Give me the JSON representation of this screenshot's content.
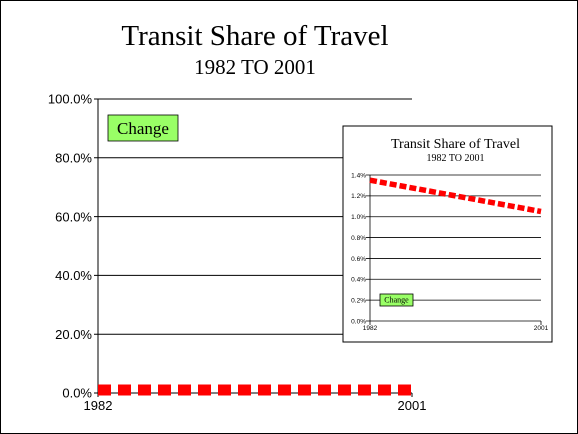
{
  "chart_data": [
    {
      "type": "line",
      "title": "Transit Share of Travel",
      "subtitle": "1982 TO 2001",
      "x": [
        1982,
        2001
      ],
      "x_tick_labels": [
        "1982",
        "2001"
      ],
      "series": [
        {
          "values": [
            0.01,
            0.01
          ],
          "color": "#ff0000",
          "style": "dashed"
        }
      ],
      "ylim": [
        0,
        1.0
      ],
      "y_tick_labels": [
        "0.0%",
        "20.0%",
        "40.0%",
        "60.0%",
        "80.0%",
        "100.0%"
      ],
      "grid": true,
      "annotation": {
        "text": "Change",
        "color": "#99ff66"
      }
    },
    {
      "type": "line",
      "title": "Transit Share of Travel",
      "subtitle": "1982 TO 2001",
      "x": [
        1982,
        2001
      ],
      "x_tick_labels": [
        "1982",
        "2001"
      ],
      "series": [
        {
          "values": [
            0.0135,
            0.0105
          ],
          "color": "#ff0000",
          "style": "dashed"
        }
      ],
      "ylim": [
        0,
        0.014
      ],
      "y_tick_labels": [
        "0.0%",
        "0.2%",
        "0.4%",
        "0.6%",
        "0.8%",
        "1.0%",
        "1.2%",
        "1.4%"
      ],
      "grid": true,
      "annotation": {
        "text": "Change",
        "color": "#99ff66"
      }
    }
  ]
}
